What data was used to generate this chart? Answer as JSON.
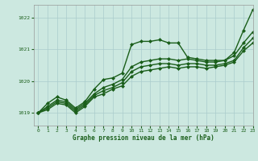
{
  "title": "Graphe pression niveau de la mer (hPa)",
  "xlim": [
    -0.5,
    23
  ],
  "ylim": [
    1018.6,
    1022.4
  ],
  "yticks": [
    1019,
    1020,
    1021,
    1022
  ],
  "xticks": [
    0,
    1,
    2,
    3,
    4,
    5,
    6,
    7,
    8,
    9,
    10,
    11,
    12,
    13,
    14,
    15,
    16,
    17,
    18,
    19,
    20,
    21,
    22,
    23
  ],
  "background_color": "#cce8e0",
  "grid_color": "#aacccc",
  "line_color": "#1a5e1a",
  "lines": [
    {
      "x": [
        0,
        1,
        2,
        3,
        4,
        5,
        6,
        7,
        8,
        9,
        10,
        11,
        12,
        13,
        14,
        15,
        16,
        17,
        18,
        19,
        20,
        21,
        22,
        23
      ],
      "y": [
        1019.0,
        1019.3,
        1019.5,
        1019.4,
        1019.15,
        1019.35,
        1019.75,
        1020.05,
        1020.1,
        1020.25,
        1021.15,
        1021.25,
        1021.25,
        1021.3,
        1021.2,
        1021.2,
        1020.75,
        1020.7,
        1020.65,
        1020.65,
        1020.65,
        1020.9,
        1021.6,
        1022.25
      ],
      "marker": "D",
      "markersize": 2.0,
      "linewidth": 1.0
    },
    {
      "x": [
        0,
        1,
        2,
        3,
        4,
        5,
        6,
        7,
        8,
        9,
        10,
        11,
        12,
        13,
        14,
        15,
        16,
        17,
        18,
        19,
        20,
        21,
        22,
        23
      ],
      "y": [
        1019.0,
        1019.2,
        1019.4,
        1019.35,
        1019.1,
        1019.3,
        1019.6,
        1019.8,
        1019.9,
        1020.05,
        1020.45,
        1020.6,
        1020.65,
        1020.7,
        1020.7,
        1020.65,
        1020.7,
        1020.65,
        1020.6,
        1020.6,
        1020.65,
        1020.8,
        1021.2,
        1021.55
      ],
      "marker": "D",
      "markersize": 2.0,
      "linewidth": 1.0
    },
    {
      "x": [
        0,
        1,
        2,
        3,
        4,
        5,
        6,
        7,
        8,
        9,
        10,
        11,
        12,
        13,
        14,
        15,
        16,
        17,
        18,
        19,
        20,
        21,
        22,
        23
      ],
      "y": [
        1019.0,
        1019.15,
        1019.35,
        1019.3,
        1019.05,
        1019.25,
        1019.55,
        1019.7,
        1019.8,
        1019.95,
        1020.3,
        1020.45,
        1020.5,
        1020.55,
        1020.55,
        1020.5,
        1020.55,
        1020.55,
        1020.5,
        1020.5,
        1020.55,
        1020.65,
        1021.05,
        1021.35
      ],
      "marker": "D",
      "markersize": 2.0,
      "linewidth": 1.0
    },
    {
      "x": [
        0,
        1,
        2,
        3,
        4,
        5,
        6,
        7,
        8,
        9,
        10,
        11,
        12,
        13,
        14,
        15,
        16,
        17,
        18,
        19,
        20,
        21,
        22,
        23
      ],
      "y": [
        1019.0,
        1019.1,
        1019.3,
        1019.25,
        1019.0,
        1019.2,
        1019.5,
        1019.6,
        1019.75,
        1019.85,
        1020.15,
        1020.3,
        1020.35,
        1020.4,
        1020.45,
        1020.4,
        1020.45,
        1020.45,
        1020.4,
        1020.45,
        1020.5,
        1020.6,
        1020.95,
        1021.2
      ],
      "marker": "D",
      "markersize": 2.0,
      "linewidth": 1.0
    }
  ]
}
